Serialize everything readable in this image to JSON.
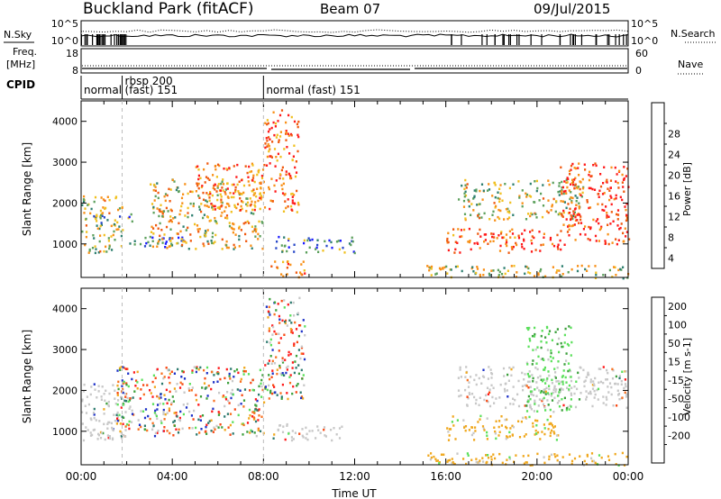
{
  "header": {
    "station": "Buckland Park (fitACF)",
    "beam": "Beam 07",
    "date": "09/Jul/2015"
  },
  "strip": {
    "nsky_label": "N.Sky",
    "nsky_top": "10^5",
    "nsky_bottom": "10^0",
    "nsearch_top": "10^5",
    "nsearch_bottom": "10^0",
    "nsearch_label": "N.Search",
    "freq_label": "Freq.",
    "freq_unit": "[MHz]",
    "freq_top": "18",
    "freq_bottom": "8",
    "nave_top": "60",
    "nave_bottom": "0",
    "nave_label": "Nave",
    "cpid_label": "CPID",
    "cpid_segments": [
      {
        "line1": "normal",
        "line2": "",
        "start_h": 0,
        "end_h": 1.8
      },
      {
        "line1": "rbsp 200",
        "line2": "(fast) 151",
        "start_h": 1.8,
        "end_h": 8.0
      },
      {
        "line1": "normal (fast) 151",
        "line2": "",
        "start_h": 8.0,
        "end_h": 24
      }
    ]
  },
  "chart_data": [
    {
      "type": "heatmap",
      "title": "",
      "quantity": "Power",
      "ylabel": "Slant Range [km]",
      "xlabel": "",
      "x_range_h": [
        0,
        24
      ],
      "ylim": [
        180,
        4500
      ],
      "yticks": [
        "1000",
        "2000",
        "3000",
        "4000"
      ],
      "colorbar_label": "Power [dB]",
      "colorbar_ticks": [
        "4",
        "8",
        "12",
        "16",
        "20",
        "24",
        "28"
      ],
      "colorbar_colors": [
        "#1a1aff",
        "#2848c8",
        "#2e7f70",
        "#5ca05c",
        "#f0c020",
        "#f89018",
        "#f05a10",
        "#ff1a1a"
      ],
      "regions": [
        {
          "t0": 0,
          "t1": 1.8,
          "r0": 800,
          "r1": 2200,
          "level": 0.55
        },
        {
          "t0": 0.2,
          "t1": 2.4,
          "r0": 1500,
          "r1": 1750,
          "level": 0.35
        },
        {
          "t0": 1.5,
          "t1": 4.5,
          "r0": 950,
          "r1": 1200,
          "level": 0.2
        },
        {
          "t0": 3.0,
          "t1": 8.0,
          "r0": 900,
          "r1": 2600,
          "level": 0.6
        },
        {
          "t0": 5.0,
          "t1": 8.0,
          "r0": 1800,
          "r1": 3000,
          "level": 0.75
        },
        {
          "t0": 8.0,
          "t1": 9.5,
          "r0": 1800,
          "r1": 4300,
          "level": 0.8
        },
        {
          "t0": 8.5,
          "t1": 12.0,
          "r0": 800,
          "r1": 1200,
          "level": 0.3
        },
        {
          "t0": 8.2,
          "t1": 9.8,
          "r0": 180,
          "r1": 600,
          "level": 0.75
        },
        {
          "t0": 15.0,
          "t1": 24.0,
          "r0": 180,
          "r1": 500,
          "level": 0.5
        },
        {
          "t0": 16.0,
          "t1": 21.0,
          "r0": 800,
          "r1": 1400,
          "level": 0.85
        },
        {
          "t0": 16.5,
          "t1": 22.0,
          "r0": 1600,
          "r1": 2600,
          "level": 0.55
        },
        {
          "t0": 21.0,
          "t1": 24.0,
          "r0": 1000,
          "r1": 3000,
          "level": 0.9
        }
      ]
    },
    {
      "type": "heatmap",
      "title": "",
      "quantity": "Velocity",
      "ylabel": "Slant Range [km]",
      "xlabel": "Time UT",
      "x_range_h": [
        0,
        24
      ],
      "ylim": [
        180,
        4500
      ],
      "yticks": [
        "1000",
        "2000",
        "3000",
        "4000"
      ],
      "xticks": [
        "00:00",
        "04:00",
        "08:00",
        "12:00",
        "16:00",
        "20:00",
        "00:00"
      ],
      "colorbar_label": "Velocity [m s-1]",
      "colorbar_ticks": [
        "200",
        "100",
        "50",
        "15",
        "-15",
        "-50",
        "-100",
        "-200"
      ],
      "colorbar_colors": [
        "#1e32c8",
        "#2c7a6e",
        "#3ca03c",
        "#5ce05c",
        "#c8c8c8",
        "#f0a81e",
        "#f87020",
        "#f84a14",
        "#ff1a1a"
      ],
      "regions": [
        {
          "t0": 0,
          "t1": 2.2,
          "r0": 800,
          "r1": 2200,
          "kind": "gray"
        },
        {
          "t0": 1.5,
          "t1": 8.0,
          "r0": 900,
          "r1": 2600,
          "kind": "mixed"
        },
        {
          "t0": 8.0,
          "t1": 9.8,
          "r0": 1800,
          "r1": 4300,
          "kind": "mixed"
        },
        {
          "t0": 8.3,
          "t1": 11.5,
          "r0": 800,
          "r1": 1200,
          "kind": "gray"
        },
        {
          "t0": 15.0,
          "t1": 24.0,
          "r0": 180,
          "r1": 500,
          "kind": "orange"
        },
        {
          "t0": 16.0,
          "t1": 21.0,
          "r0": 800,
          "r1": 1400,
          "kind": "orange"
        },
        {
          "t0": 16.5,
          "t1": 24.0,
          "r0": 1600,
          "r1": 2600,
          "kind": "gray"
        },
        {
          "t0": 19.5,
          "t1": 21.5,
          "r0": 1500,
          "r1": 3600,
          "kind": "green"
        }
      ]
    }
  ]
}
